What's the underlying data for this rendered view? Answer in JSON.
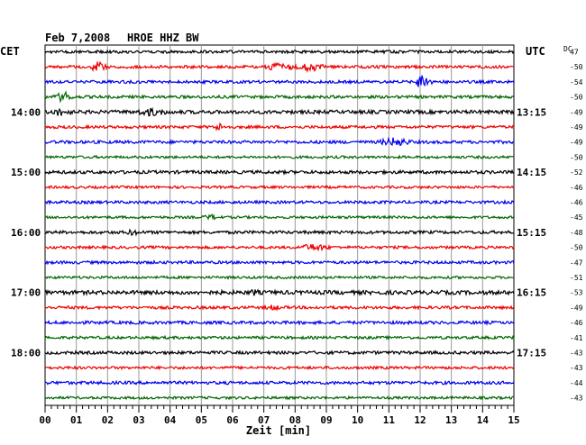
{
  "header": {
    "date": "Feb 7,2008",
    "station": "HROE HHZ BW",
    "left_tz": "CET",
    "right_tz": "UTC",
    "dc_label": "DC"
  },
  "chart_data": {
    "type": "line",
    "title": "Feb 7,2008   HROE HHZ BW",
    "xlabel": "Zeit [min]",
    "ylabel": "",
    "xlim": [
      0,
      15
    ],
    "x_ticks": [
      "00",
      "01",
      "02",
      "03",
      "04",
      "05",
      "06",
      "07",
      "08",
      "09",
      "10",
      "11",
      "12",
      "13",
      "14",
      "15"
    ],
    "grid": true,
    "colors": [
      "#000000",
      "#ee0000",
      "#0000ee",
      "#006600"
    ],
    "left_hour_labels": [
      {
        "trace": 4,
        "label": "14:00"
      },
      {
        "trace": 8,
        "label": "15:00"
      },
      {
        "trace": 12,
        "label": "16:00"
      },
      {
        "trace": 16,
        "label": "17:00"
      },
      {
        "trace": 20,
        "label": "18:00"
      }
    ],
    "right_hour_labels": [
      {
        "trace": 4,
        "label": "13:15"
      },
      {
        "trace": 8,
        "label": "14:15"
      },
      {
        "trace": 12,
        "label": "15:15"
      },
      {
        "trace": 16,
        "label": "16:15"
      },
      {
        "trace": 20,
        "label": "17:15"
      }
    ],
    "dc_values": [
      "47",
      "-50",
      "-54",
      "-50",
      "-49",
      "-49",
      "-49",
      "-50",
      "-52",
      "-46",
      "-46",
      "-45",
      "-48",
      "-50",
      "-47",
      "-51",
      "-53",
      "-49",
      "-46",
      "-41",
      "-43",
      "-43",
      "-44",
      "-43"
    ],
    "events": [
      {
        "trace": 1,
        "minute": 1.7,
        "amplitude": 5,
        "width": 0.35
      },
      {
        "trace": 1,
        "minute": 7.5,
        "amplitude": 4,
        "width": 0.6
      },
      {
        "trace": 1,
        "minute": 8.5,
        "amplitude": 4,
        "width": 0.5
      },
      {
        "trace": 2,
        "minute": 12.1,
        "amplitude": 9,
        "width": 0.3
      },
      {
        "trace": 3,
        "minute": 0.6,
        "amplitude": 5,
        "width": 0.35
      },
      {
        "trace": 4,
        "minute": 0.5,
        "amplitude": 3,
        "width": 0.4
      },
      {
        "trace": 4,
        "minute": 3.4,
        "amplitude": 3,
        "width": 0.6
      },
      {
        "trace": 5,
        "minute": 5.6,
        "amplitude": 3,
        "width": 0.3
      },
      {
        "trace": 6,
        "minute": 11.2,
        "amplitude": 4,
        "width": 0.6
      },
      {
        "trace": 11,
        "minute": 5.3,
        "amplitude": 2,
        "width": 0.3
      },
      {
        "trace": 12,
        "minute": 2.8,
        "amplitude": 2,
        "width": 0.3
      },
      {
        "trace": 13,
        "minute": 8.6,
        "amplitude": 3,
        "width": 0.6
      },
      {
        "trace": 16,
        "minute": 6.7,
        "amplitude": 2,
        "width": 0.2
      },
      {
        "trace": 17,
        "minute": 7.3,
        "amplitude": 2,
        "width": 0.3
      }
    ],
    "series": [
      {
        "color": "#000000",
        "noise": 1.6
      },
      {
        "color": "#ee0000",
        "noise": 1.6
      },
      {
        "color": "#0000ee",
        "noise": 1.6
      },
      {
        "color": "#006600",
        "noise": 1.6
      },
      {
        "color": "#000000",
        "noise": 2.0
      },
      {
        "color": "#ee0000",
        "noise": 1.6
      },
      {
        "color": "#0000ee",
        "noise": 1.7
      },
      {
        "color": "#006600",
        "noise": 1.4
      },
      {
        "color": "#000000",
        "noise": 1.8
      },
      {
        "color": "#ee0000",
        "noise": 1.4
      },
      {
        "color": "#0000ee",
        "noise": 1.6
      },
      {
        "color": "#006600",
        "noise": 1.4
      },
      {
        "color": "#000000",
        "noise": 1.7
      },
      {
        "color": "#ee0000",
        "noise": 1.5
      },
      {
        "color": "#0000ee",
        "noise": 1.6
      },
      {
        "color": "#006600",
        "noise": 1.4
      },
      {
        "color": "#000000",
        "noise": 2.2
      },
      {
        "color": "#ee0000",
        "noise": 1.6
      },
      {
        "color": "#0000ee",
        "noise": 1.7
      },
      {
        "color": "#006600",
        "noise": 1.5
      },
      {
        "color": "#000000",
        "noise": 1.7
      },
      {
        "color": "#ee0000",
        "noise": 1.5
      },
      {
        "color": "#0000ee",
        "noise": 1.7
      },
      {
        "color": "#006600",
        "noise": 1.4
      }
    ]
  }
}
